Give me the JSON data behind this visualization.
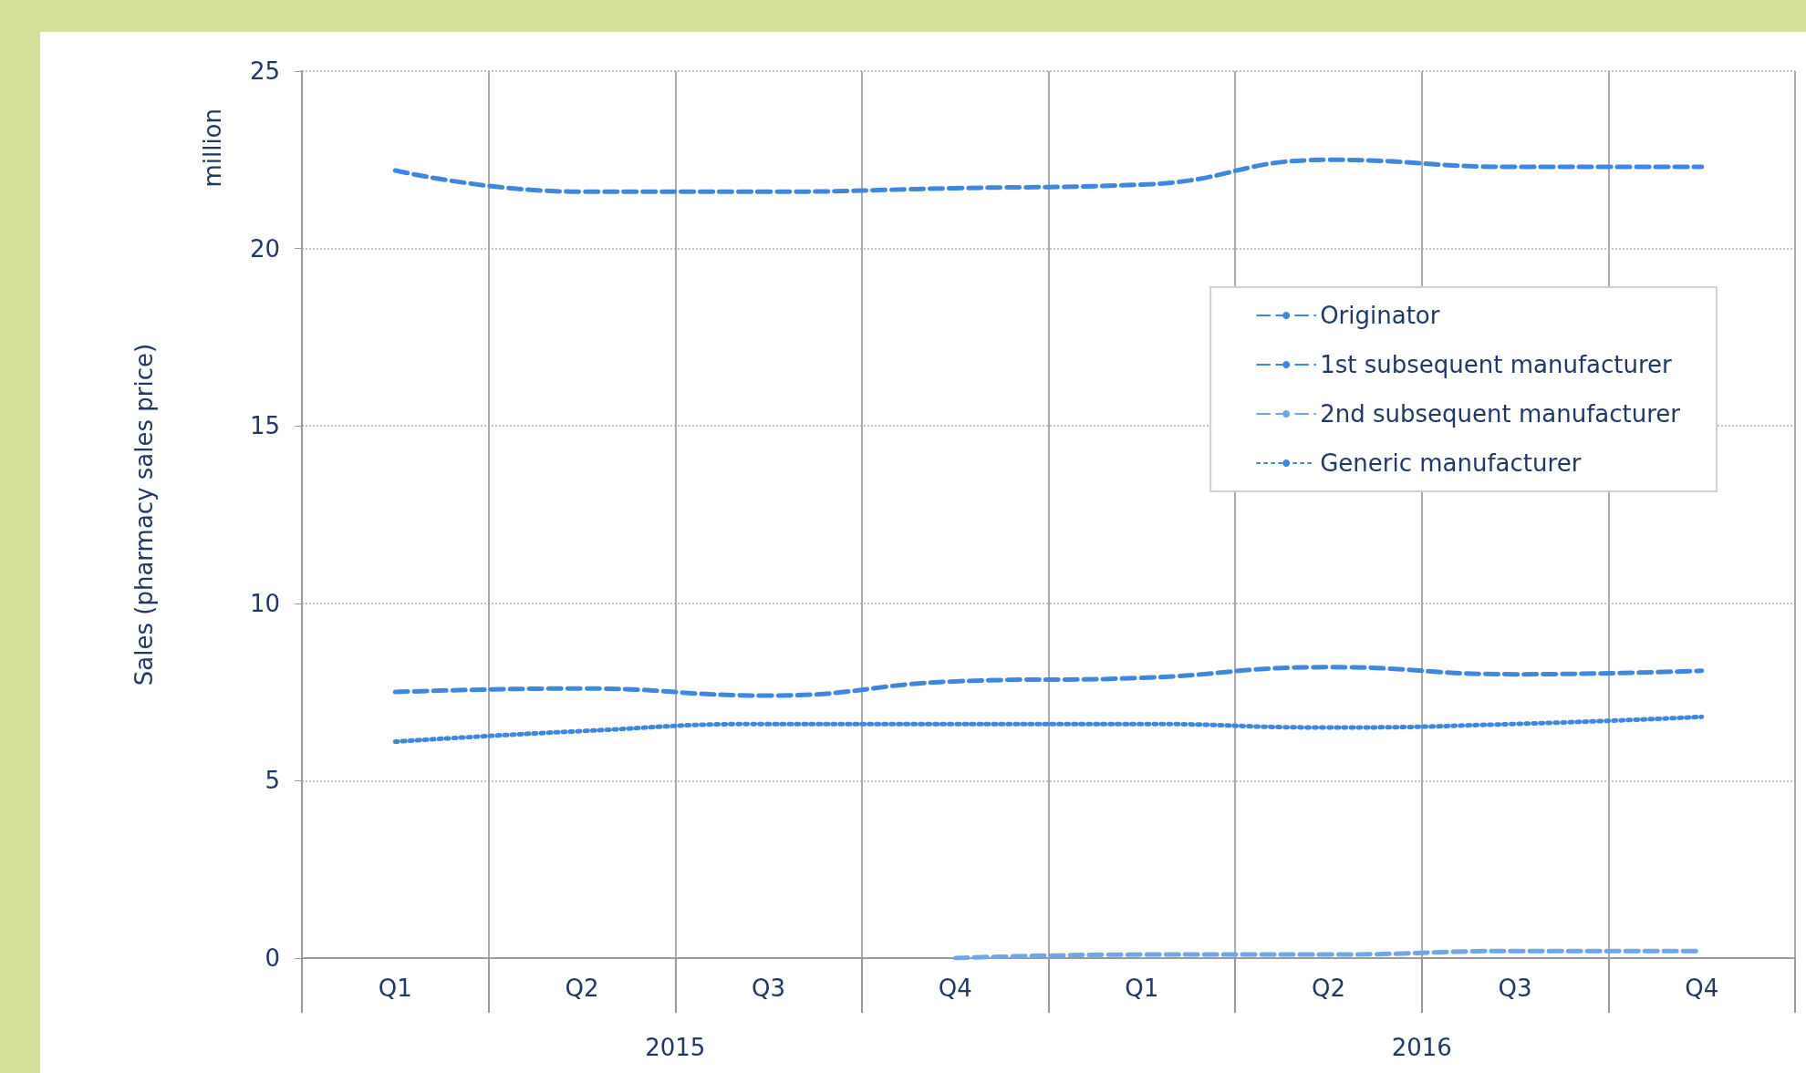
{
  "chart_data": {
    "type": "line",
    "ylabel": "Sales (pharmacy sales price)",
    "annotations": [
      "million",
      "2015",
      "2016"
    ],
    "categories": [
      "Q1",
      "Q2",
      "Q3",
      "Q4",
      "Q1",
      "Q2",
      "Q3",
      "Q4"
    ],
    "series": [
      {
        "name": "Originator",
        "color": "#3f86e0",
        "line_style": "dashed",
        "values": [
          22.2,
          21.6,
          21.6,
          21.7,
          21.8,
          22.5,
          22.3,
          22.3
        ]
      },
      {
        "name": "1st subsequent manufacturer",
        "color": "#3f86e0",
        "line_style": "dashed",
        "values": [
          7.5,
          7.6,
          7.4,
          7.8,
          7.9,
          8.2,
          8.0,
          8.1
        ]
      },
      {
        "name": "2nd subsequent manufacturer",
        "color": "#6fa6e6",
        "line_style": "dashed",
        "values": [
          null,
          null,
          null,
          0.0,
          0.1,
          0.1,
          0.2,
          0.2
        ]
      },
      {
        "name": "Generic manufacturer",
        "color": "#3f86e0",
        "line_style": "dotted",
        "values": [
          6.1,
          6.4,
          6.6,
          6.6,
          6.6,
          6.5,
          6.6,
          6.8
        ]
      }
    ],
    "ylim": [
      0,
      25
    ],
    "yticks": [
      0,
      5,
      10,
      15,
      20,
      25
    ],
    "grid": true,
    "legend": "right",
    "marker": "none"
  }
}
